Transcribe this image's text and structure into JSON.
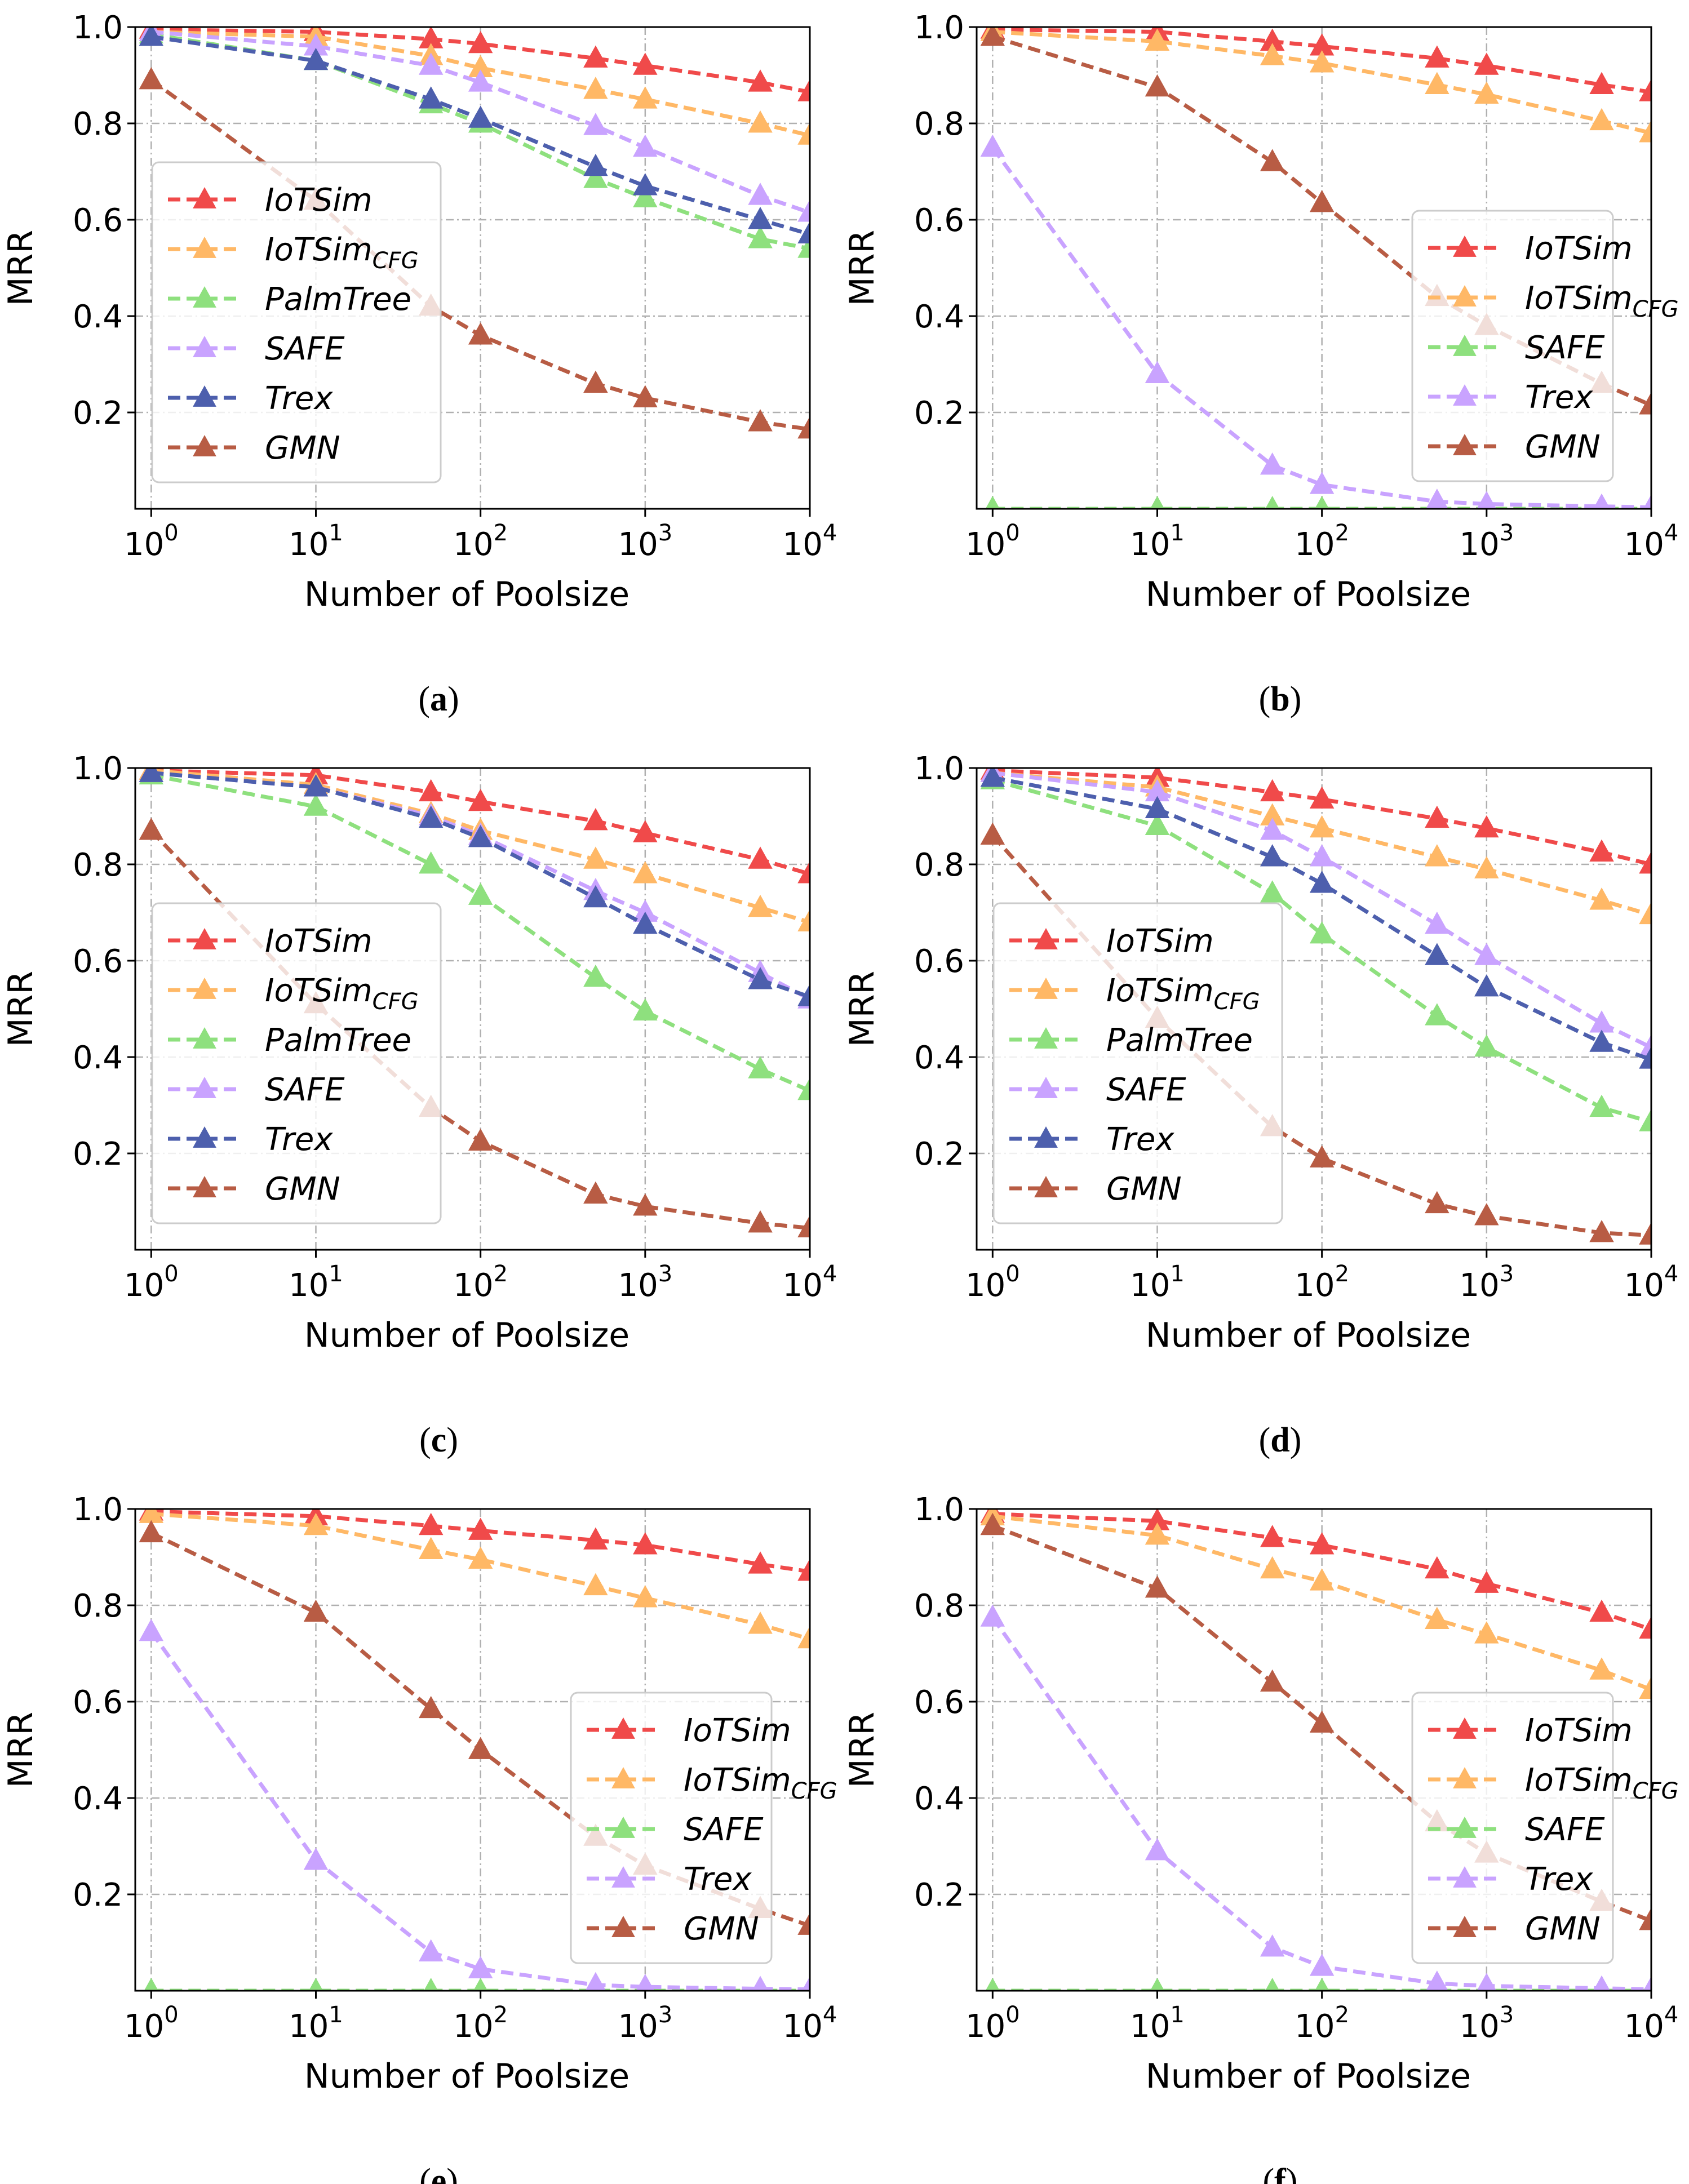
{
  "figure": {
    "x_axis_label": "Number of Poolsize",
    "y_axis_label": "MRR",
    "x_ticks": [
      {
        "value": 1,
        "base": "10",
        "exp": "0"
      },
      {
        "value": 10,
        "base": "10",
        "exp": "1"
      },
      {
        "value": 100,
        "base": "10",
        "exp": "2"
      },
      {
        "value": 1000,
        "base": "10",
        "exp": "3"
      },
      {
        "value": 10000,
        "base": "10",
        "exp": "4"
      }
    ],
    "y_ticks": [
      "0.2",
      "0.4",
      "0.6",
      "0.8",
      "1.0"
    ]
  },
  "colors": {
    "IoTSim": "#f04a4a",
    "IoTSimCFG": "#ffb866",
    "PalmTree": "#8ee07e",
    "SAFE": "#c9a3ff",
    "Trex": "#4d5fad",
    "GMN": "#b85c44"
  },
  "chart_data": [
    {
      "id": "a",
      "caption_letter": "a",
      "type": "line",
      "xscale": "log",
      "xlabel": "Number of Poolsize",
      "ylabel": "MRR",
      "xlim": [
        0.8,
        10000
      ],
      "ylim": [
        0.0,
        1.0
      ],
      "grid": true,
      "legend": "center-left",
      "x": [
        1,
        10,
        50,
        100,
        500,
        1000,
        5000,
        10000
      ],
      "series": [
        {
          "name": "IoTSim",
          "label_main": "IoTSim",
          "label_sub": "",
          "color_key": "IoTSim",
          "values": [
            0.995,
            0.99,
            0.975,
            0.965,
            0.935,
            0.92,
            0.885,
            0.865
          ]
        },
        {
          "name": "IoTSimCFG",
          "label_main": "IoTSim",
          "label_sub": "CFG",
          "color_key": "IoTSimCFG",
          "values": [
            0.99,
            0.98,
            0.94,
            0.915,
            0.87,
            0.85,
            0.8,
            0.775
          ]
        },
        {
          "name": "PalmTree",
          "label_main": "PalmTree",
          "label_sub": "",
          "color_key": "PalmTree",
          "values": [
            0.985,
            0.93,
            0.84,
            0.8,
            0.685,
            0.645,
            0.56,
            0.54
          ]
        },
        {
          "name": "SAFE",
          "label_main": "SAFE",
          "label_sub": "",
          "color_key": "SAFE",
          "values": [
            0.99,
            0.96,
            0.92,
            0.885,
            0.795,
            0.75,
            0.65,
            0.615
          ]
        },
        {
          "name": "Trex",
          "label_main": "Trex",
          "label_sub": "",
          "color_key": "Trex",
          "values": [
            0.98,
            0.93,
            0.85,
            0.81,
            0.71,
            0.67,
            0.6,
            0.57
          ]
        },
        {
          "name": "GMN",
          "label_main": "GMN",
          "label_sub": "",
          "color_key": "GMN",
          "values": [
            0.89,
            0.64,
            0.42,
            0.36,
            0.26,
            0.23,
            0.18,
            0.165
          ]
        }
      ]
    },
    {
      "id": "b",
      "caption_letter": "b",
      "type": "line",
      "xscale": "log",
      "xlabel": "Number of Poolsize",
      "ylabel": "MRR",
      "xlim": [
        0.8,
        10000
      ],
      "ylim": [
        0.0,
        1.0
      ],
      "grid": true,
      "legend": "center-right",
      "x": [
        1,
        10,
        50,
        100,
        500,
        1000,
        5000,
        10000
      ],
      "series": [
        {
          "name": "IoTSim",
          "label_main": "IoTSim",
          "label_sub": "",
          "color_key": "IoTSim",
          "values": [
            0.995,
            0.99,
            0.97,
            0.96,
            0.935,
            0.92,
            0.88,
            0.865
          ]
        },
        {
          "name": "IoTSimCFG",
          "label_main": "IoTSim",
          "label_sub": "CFG",
          "color_key": "IoTSimCFG",
          "values": [
            0.99,
            0.97,
            0.94,
            0.925,
            0.88,
            0.86,
            0.805,
            0.78
          ]
        },
        {
          "name": "SAFE",
          "label_main": "SAFE",
          "label_sub": "",
          "color_key": "PalmTree",
          "values": [
            0.0,
            0.0,
            0.0,
            0.0,
            0.0,
            0.0,
            0.0,
            0.0
          ]
        },
        {
          "name": "Trex",
          "label_main": "Trex",
          "label_sub": "",
          "color_key": "SAFE",
          "values": [
            0.75,
            0.28,
            0.09,
            0.05,
            0.015,
            0.01,
            0.005,
            0.003
          ]
        },
        {
          "name": "GMN",
          "label_main": "GMN",
          "label_sub": "",
          "color_key": "GMN",
          "values": [
            0.98,
            0.875,
            0.72,
            0.635,
            0.44,
            0.38,
            0.26,
            0.215
          ]
        }
      ]
    },
    {
      "id": "c",
      "caption_letter": "c",
      "type": "line",
      "xscale": "log",
      "xlabel": "Number of Poolsize",
      "ylabel": "MRR",
      "xlim": [
        0.8,
        10000
      ],
      "ylim": [
        0.0,
        1.0
      ],
      "grid": true,
      "legend": "center-left",
      "x": [
        1,
        10,
        50,
        100,
        500,
        1000,
        5000,
        10000
      ],
      "series": [
        {
          "name": "IoTSim",
          "label_main": "IoTSim",
          "label_sub": "",
          "color_key": "IoTSim",
          "values": [
            0.995,
            0.985,
            0.95,
            0.93,
            0.89,
            0.865,
            0.81,
            0.78
          ]
        },
        {
          "name": "IoTSimCFG",
          "label_main": "IoTSim",
          "label_sub": "CFG",
          "color_key": "IoTSimCFG",
          "values": [
            0.995,
            0.965,
            0.905,
            0.87,
            0.81,
            0.78,
            0.71,
            0.68
          ]
        },
        {
          "name": "PalmTree",
          "label_main": "PalmTree",
          "label_sub": "",
          "color_key": "PalmTree",
          "values": [
            0.985,
            0.92,
            0.8,
            0.735,
            0.565,
            0.495,
            0.375,
            0.33
          ]
        },
        {
          "name": "SAFE",
          "label_main": "SAFE",
          "label_sub": "",
          "color_key": "SAFE",
          "values": [
            0.99,
            0.96,
            0.9,
            0.86,
            0.745,
            0.7,
            0.575,
            0.52
          ]
        },
        {
          "name": "Trex",
          "label_main": "Trex",
          "label_sub": "",
          "color_key": "Trex",
          "values": [
            0.99,
            0.96,
            0.895,
            0.855,
            0.73,
            0.675,
            0.56,
            0.525
          ]
        },
        {
          "name": "GMN",
          "label_main": "GMN",
          "label_sub": "",
          "color_key": "GMN",
          "values": [
            0.87,
            0.51,
            0.295,
            0.225,
            0.115,
            0.09,
            0.055,
            0.045
          ]
        }
      ]
    },
    {
      "id": "d",
      "caption_letter": "d",
      "type": "line",
      "xscale": "log",
      "xlabel": "Number of Poolsize",
      "ylabel": "MRR",
      "xlim": [
        0.8,
        10000
      ],
      "ylim": [
        0.0,
        1.0
      ],
      "grid": true,
      "legend": "center-left",
      "x": [
        1,
        10,
        50,
        100,
        500,
        1000,
        5000,
        10000
      ],
      "series": [
        {
          "name": "IoTSim",
          "label_main": "IoTSim",
          "label_sub": "",
          "color_key": "IoTSim",
          "values": [
            0.995,
            0.98,
            0.95,
            0.935,
            0.895,
            0.875,
            0.825,
            0.8
          ]
        },
        {
          "name": "IoTSimCFG",
          "label_main": "IoTSim",
          "label_sub": "CFG",
          "color_key": "IoTSimCFG",
          "values": [
            0.99,
            0.96,
            0.9,
            0.875,
            0.815,
            0.79,
            0.725,
            0.695
          ]
        },
        {
          "name": "PalmTree",
          "label_main": "PalmTree",
          "label_sub": "",
          "color_key": "PalmTree",
          "values": [
            0.975,
            0.88,
            0.74,
            0.655,
            0.485,
            0.42,
            0.295,
            0.265
          ]
        },
        {
          "name": "SAFE",
          "label_main": "SAFE",
          "label_sub": "",
          "color_key": "SAFE",
          "values": [
            0.99,
            0.95,
            0.87,
            0.815,
            0.675,
            0.61,
            0.47,
            0.42
          ]
        },
        {
          "name": "Trex",
          "label_main": "Trex",
          "label_sub": "",
          "color_key": "Trex",
          "values": [
            0.98,
            0.915,
            0.815,
            0.76,
            0.61,
            0.545,
            0.43,
            0.395
          ]
        },
        {
          "name": "GMN",
          "label_main": "GMN",
          "label_sub": "",
          "color_key": "GMN",
          "values": [
            0.86,
            0.48,
            0.255,
            0.19,
            0.095,
            0.07,
            0.035,
            0.03
          ]
        }
      ]
    },
    {
      "id": "e",
      "caption_letter": "e",
      "type": "line",
      "xscale": "log",
      "xlabel": "Number of Poolsize",
      "ylabel": "MRR",
      "xlim": [
        0.8,
        10000
      ],
      "ylim": [
        0.0,
        1.0
      ],
      "grid": true,
      "legend": "center-right",
      "x": [
        1,
        10,
        50,
        100,
        500,
        1000,
        5000,
        10000
      ],
      "series": [
        {
          "name": "IoTSim",
          "label_main": "IoTSim",
          "label_sub": "",
          "color_key": "IoTSim",
          "values": [
            0.995,
            0.985,
            0.965,
            0.955,
            0.935,
            0.925,
            0.885,
            0.87
          ]
        },
        {
          "name": "IoTSimCFG",
          "label_main": "IoTSim",
          "label_sub": "CFG",
          "color_key": "IoTSimCFG",
          "values": [
            0.99,
            0.965,
            0.915,
            0.895,
            0.84,
            0.815,
            0.76,
            0.73
          ]
        },
        {
          "name": "SAFE",
          "label_main": "SAFE",
          "label_sub": "",
          "color_key": "PalmTree",
          "values": [
            0.0,
            0.0,
            0.0,
            0.0,
            0.0,
            0.0,
            0.0,
            0.0
          ]
        },
        {
          "name": "Trex",
          "label_main": "Trex",
          "label_sub": "",
          "color_key": "SAFE",
          "values": [
            0.745,
            0.27,
            0.08,
            0.045,
            0.012,
            0.008,
            0.004,
            0.003
          ]
        },
        {
          "name": "GMN",
          "label_main": "GMN",
          "label_sub": "",
          "color_key": "GMN",
          "values": [
            0.95,
            0.785,
            0.585,
            0.5,
            0.32,
            0.26,
            0.17,
            0.135
          ]
        }
      ]
    },
    {
      "id": "f",
      "caption_letter": "f",
      "type": "line",
      "xscale": "log",
      "xlabel": "Number of Poolsize",
      "ylabel": "MRR",
      "xlim": [
        0.8,
        10000
      ],
      "ylim": [
        0.0,
        1.0
      ],
      "grid": true,
      "legend": "center-right",
      "x": [
        1,
        10,
        50,
        100,
        500,
        1000,
        5000,
        10000
      ],
      "series": [
        {
          "name": "IoTSim",
          "label_main": "IoTSim",
          "label_sub": "",
          "color_key": "IoTSim",
          "values": [
            0.99,
            0.975,
            0.94,
            0.925,
            0.875,
            0.845,
            0.785,
            0.75
          ]
        },
        {
          "name": "IoTSimCFG",
          "label_main": "IoTSim",
          "label_sub": "CFG",
          "color_key": "IoTSimCFG",
          "values": [
            0.985,
            0.945,
            0.875,
            0.85,
            0.77,
            0.74,
            0.665,
            0.625
          ]
        },
        {
          "name": "SAFE",
          "label_main": "SAFE",
          "label_sub": "",
          "color_key": "PalmTree",
          "values": [
            0.0,
            0.0,
            0.0,
            0.0,
            0.0,
            0.0,
            0.0,
            0.0
          ]
        },
        {
          "name": "Trex",
          "label_main": "Trex",
          "label_sub": "",
          "color_key": "SAFE",
          "values": [
            0.775,
            0.29,
            0.09,
            0.05,
            0.015,
            0.01,
            0.005,
            0.003
          ]
        },
        {
          "name": "GMN",
          "label_main": "GMN",
          "label_sub": "",
          "color_key": "GMN",
          "values": [
            0.965,
            0.835,
            0.64,
            0.555,
            0.35,
            0.285,
            0.185,
            0.145
          ]
        }
      ]
    }
  ]
}
